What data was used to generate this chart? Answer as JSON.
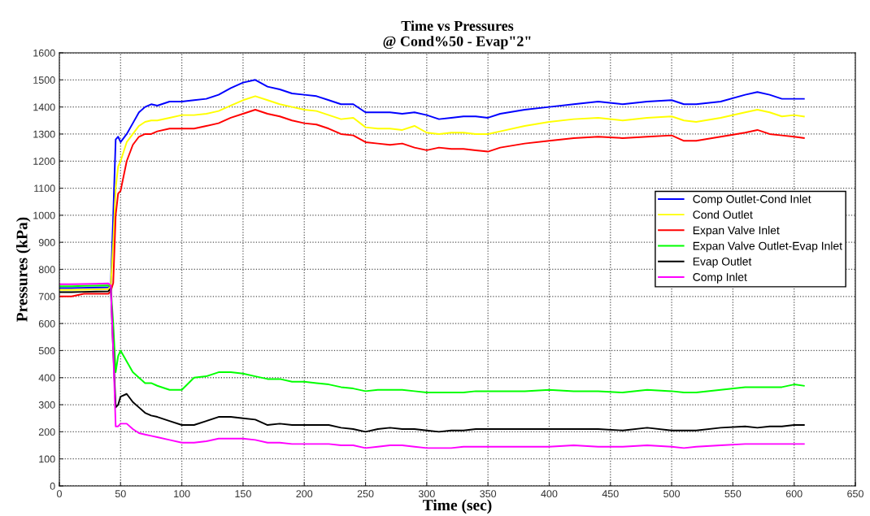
{
  "chart_data": {
    "type": "line",
    "title": "Time vs Pressures\n@ Cond%50 - Evap\"2\"",
    "xlabel": "Time (sec)",
    "ylabel": "Pressures (kPa)",
    "x": [
      0,
      10,
      20,
      30,
      40,
      42,
      44,
      46,
      48,
      50,
      55,
      60,
      65,
      70,
      75,
      80,
      90,
      100,
      110,
      120,
      130,
      140,
      150,
      160,
      170,
      180,
      190,
      200,
      210,
      220,
      230,
      240,
      250,
      260,
      270,
      280,
      290,
      300,
      310,
      320,
      330,
      340,
      350,
      360,
      380,
      400,
      420,
      440,
      460,
      480,
      500,
      510,
      520,
      540,
      560,
      570,
      580,
      590,
      600,
      608
    ],
    "series": [
      {
        "name": "Comp Outlet-Cond Inlet",
        "color": "#0000ff",
        "values": [
          731,
          731,
          732,
          733,
          734,
          740,
          1000,
          1280,
          1290,
          1270,
          1300,
          1340,
          1380,
          1400,
          1410,
          1405,
          1420,
          1420,
          1425,
          1430,
          1445,
          1470,
          1490,
          1500,
          1475,
          1465,
          1450,
          1445,
          1440,
          1425,
          1410,
          1410,
          1380,
          1380,
          1380,
          1375,
          1380,
          1370,
          1355,
          1360,
          1365,
          1365,
          1360,
          1375,
          1390,
          1400,
          1410,
          1420,
          1410,
          1420,
          1425,
          1410,
          1410,
          1420,
          1445,
          1455,
          1445,
          1430,
          1430,
          1430
        ]
      },
      {
        "name": "Cond Outlet",
        "color": "#ffff00",
        "values": [
          724,
          724,
          725,
          726,
          727,
          740,
          900,
          1100,
          1180,
          1200,
          1270,
          1300,
          1330,
          1345,
          1350,
          1350,
          1360,
          1370,
          1370,
          1375,
          1385,
          1405,
          1425,
          1440,
          1425,
          1410,
          1400,
          1390,
          1385,
          1370,
          1355,
          1360,
          1325,
          1320,
          1320,
          1315,
          1330,
          1305,
          1300,
          1305,
          1305,
          1300,
          1300,
          1310,
          1330,
          1345,
          1355,
          1360,
          1350,
          1360,
          1365,
          1350,
          1345,
          1360,
          1380,
          1390,
          1380,
          1365,
          1370,
          1365
        ]
      },
      {
        "name": "Expan Valve Inlet",
        "color": "#ff0000",
        "values": [
          700,
          700,
          710,
          710,
          710,
          720,
          750,
          1000,
          1080,
          1090,
          1200,
          1260,
          1290,
          1300,
          1300,
          1310,
          1320,
          1320,
          1320,
          1330,
          1340,
          1360,
          1375,
          1390,
          1375,
          1365,
          1350,
          1340,
          1335,
          1320,
          1300,
          1295,
          1270,
          1265,
          1260,
          1265,
          1250,
          1240,
          1250,
          1245,
          1245,
          1240,
          1235,
          1250,
          1265,
          1275,
          1285,
          1290,
          1285,
          1290,
          1295,
          1275,
          1275,
          1290,
          1305,
          1315,
          1300,
          1295,
          1290,
          1285
        ]
      },
      {
        "name": "Expan Valve Outlet-Evap Inlet",
        "color": "#00ff00",
        "values": [
          738,
          738,
          739,
          740,
          741,
          735,
          600,
          420,
          480,
          500,
          460,
          420,
          400,
          380,
          380,
          370,
          355,
          355,
          400,
          405,
          420,
          420,
          415,
          405,
          395,
          395,
          385,
          385,
          380,
          375,
          365,
          360,
          350,
          355,
          355,
          355,
          350,
          345,
          345,
          345,
          345,
          350,
          350,
          350,
          350,
          355,
          350,
          350,
          345,
          355,
          350,
          345,
          345,
          355,
          365,
          365,
          365,
          365,
          375,
          370
        ]
      },
      {
        "name": "Evap Outlet",
        "color": "#000000",
        "values": [
          716,
          716,
          717,
          718,
          719,
          730,
          500,
          290,
          300,
          330,
          340,
          310,
          290,
          270,
          260,
          255,
          240,
          225,
          225,
          240,
          255,
          255,
          250,
          245,
          225,
          230,
          225,
          225,
          225,
          225,
          215,
          210,
          200,
          210,
          215,
          210,
          210,
          205,
          200,
          205,
          205,
          210,
          210,
          210,
          210,
          210,
          210,
          210,
          205,
          215,
          205,
          205,
          205,
          215,
          220,
          215,
          220,
          220,
          225,
          225
        ]
      },
      {
        "name": "Comp Inlet",
        "color": "#ff00ff",
        "values": [
          745,
          745,
          746,
          747,
          748,
          740,
          500,
          220,
          220,
          230,
          230,
          210,
          195,
          190,
          185,
          180,
          170,
          160,
          160,
          165,
          175,
          175,
          175,
          170,
          160,
          160,
          155,
          155,
          155,
          155,
          150,
          150,
          140,
          145,
          150,
          150,
          145,
          140,
          140,
          140,
          145,
          145,
          145,
          145,
          145,
          145,
          150,
          145,
          145,
          150,
          145,
          140,
          145,
          150,
          155,
          155,
          155,
          155,
          155,
          155
        ]
      }
    ],
    "xlim": [
      0,
      650
    ],
    "xticks": [
      0,
      50,
      100,
      150,
      200,
      250,
      300,
      350,
      400,
      450,
      500,
      550,
      600,
      650
    ],
    "ylim": [
      0,
      1600
    ],
    "yticks": [
      0,
      100,
      200,
      300,
      400,
      500,
      600,
      700,
      800,
      900,
      1000,
      1100,
      1200,
      1300,
      1400,
      1500,
      1600
    ],
    "grid": true,
    "legend": "right",
    "marker": "none",
    "line_style": "solid"
  }
}
